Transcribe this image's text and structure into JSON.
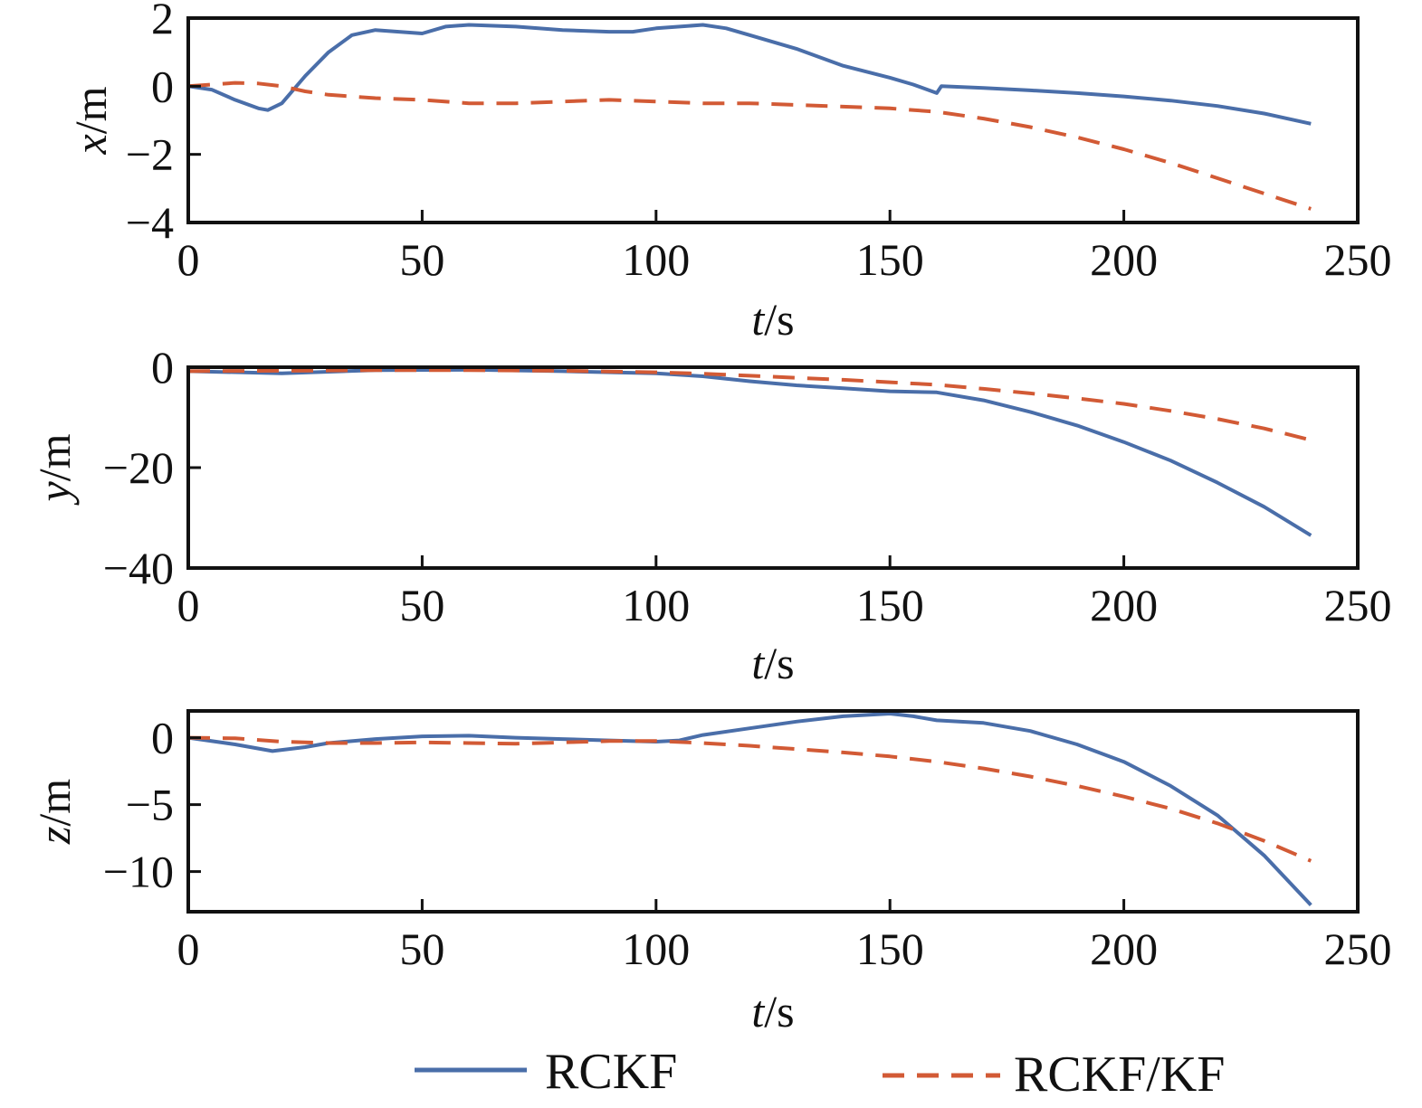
{
  "chart_data": [
    {
      "type": "line",
      "xlabel_var": "t",
      "xlabel_unit": "/s",
      "ylabel_var": "x",
      "ylabel_unit": "/m",
      "xlim": [
        0,
        250
      ],
      "ylim": [
        -4,
        2
      ],
      "xticks": [
        0,
        50,
        100,
        150,
        200,
        250
      ],
      "yticks": [
        2,
        0,
        -2,
        -4
      ],
      "xtick_labels": [
        "0",
        "50",
        "100",
        "150",
        "200",
        "250"
      ],
      "ytick_labels": [
        "2",
        "0",
        "−2",
        "−4"
      ],
      "series": [
        {
          "name": "RCKF",
          "x": [
            0,
            5,
            10,
            15,
            17,
            20,
            25,
            30,
            35,
            40,
            45,
            50,
            55,
            60,
            70,
            80,
            90,
            95,
            100,
            110,
            115,
            120,
            130,
            140,
            150,
            155,
            160,
            161,
            170,
            180,
            190,
            200,
            210,
            220,
            230,
            240
          ],
          "y": [
            0,
            -0.1,
            -0.4,
            -0.65,
            -0.7,
            -0.5,
            0.3,
            1.0,
            1.5,
            1.65,
            1.6,
            1.55,
            1.75,
            1.8,
            1.75,
            1.65,
            1.6,
            1.6,
            1.7,
            1.8,
            1.7,
            1.5,
            1.1,
            0.6,
            0.25,
            0.05,
            -0.2,
            0.0,
            -0.05,
            -0.12,
            -0.2,
            -0.3,
            -0.42,
            -0.58,
            -0.8,
            -1.1
          ]
        },
        {
          "name": "RCKF/KF",
          "x": [
            0,
            5,
            10,
            15,
            20,
            25,
            30,
            40,
            50,
            60,
            70,
            80,
            90,
            100,
            110,
            120,
            130,
            140,
            150,
            160,
            170,
            180,
            190,
            200,
            210,
            220,
            230,
            240
          ],
          "y": [
            0,
            0.05,
            0.1,
            0.08,
            0.0,
            -0.15,
            -0.25,
            -0.35,
            -0.4,
            -0.5,
            -0.5,
            -0.45,
            -0.4,
            -0.45,
            -0.5,
            -0.5,
            -0.55,
            -0.6,
            -0.65,
            -0.75,
            -0.95,
            -1.2,
            -1.5,
            -1.85,
            -2.25,
            -2.7,
            -3.15,
            -3.6
          ]
        }
      ]
    },
    {
      "type": "line",
      "xlabel_var": "t",
      "xlabel_unit": "/s",
      "ylabel_var": "y",
      "ylabel_unit": "/m",
      "xlim": [
        0,
        250
      ],
      "ylim": [
        -40,
        0
      ],
      "xticks": [
        0,
        50,
        100,
        150,
        200,
        250
      ],
      "yticks": [
        0,
        -20,
        -40
      ],
      "xtick_labels": [
        "0",
        "50",
        "100",
        "150",
        "200",
        "250"
      ],
      "ytick_labels": [
        "0",
        "−20",
        "−40"
      ],
      "series": [
        {
          "name": "RCKF",
          "x": [
            0,
            20,
            40,
            60,
            80,
            100,
            110,
            120,
            130,
            140,
            150,
            160,
            170,
            180,
            190,
            200,
            210,
            220,
            230,
            240
          ],
          "y": [
            -0.8,
            -1.2,
            -0.6,
            -0.5,
            -0.8,
            -1.2,
            -1.8,
            -2.8,
            -3.6,
            -4.2,
            -4.8,
            -5.0,
            -6.6,
            -8.9,
            -11.6,
            -14.9,
            -18.6,
            -23.0,
            -27.8,
            -33.5
          ]
        },
        {
          "name": "RCKF/KF",
          "x": [
            0,
            20,
            40,
            60,
            80,
            100,
            110,
            120,
            130,
            140,
            150,
            160,
            170,
            180,
            190,
            200,
            210,
            220,
            230,
            240
          ],
          "y": [
            -0.8,
            -0.7,
            -0.6,
            -0.6,
            -0.7,
            -1.0,
            -1.3,
            -1.7,
            -2.1,
            -2.5,
            -3.0,
            -3.5,
            -4.3,
            -5.2,
            -6.2,
            -7.3,
            -8.7,
            -10.3,
            -12.2,
            -14.5
          ]
        }
      ]
    },
    {
      "type": "line",
      "xlabel_var": "t",
      "xlabel_unit": "/s",
      "ylabel_var": "z",
      "ylabel_unit": "/m",
      "xlim": [
        0,
        250
      ],
      "ylim": [
        -13,
        2
      ],
      "xticks": [
        0,
        50,
        100,
        150,
        200,
        250
      ],
      "yticks": [
        0,
        -5,
        -10
      ],
      "xtick_labels": [
        "0",
        "50",
        "100",
        "150",
        "200",
        "250"
      ],
      "ytick_labels": [
        "0",
        "−5",
        "−10"
      ],
      "series": [
        {
          "name": "RCKF",
          "x": [
            0,
            10,
            18,
            25,
            30,
            40,
            50,
            60,
            70,
            80,
            90,
            100,
            105,
            110,
            120,
            130,
            140,
            150,
            155,
            160,
            170,
            180,
            190,
            200,
            210,
            220,
            230,
            240
          ],
          "y": [
            0,
            -0.5,
            -1.0,
            -0.7,
            -0.4,
            -0.1,
            0.1,
            0.15,
            0.0,
            -0.1,
            -0.2,
            -0.3,
            -0.2,
            0.2,
            0.7,
            1.2,
            1.6,
            1.8,
            1.6,
            1.3,
            1.1,
            0.5,
            -0.5,
            -1.8,
            -3.6,
            -5.8,
            -8.8,
            -12.5
          ]
        },
        {
          "name": "RCKF/KF",
          "x": [
            0,
            10,
            20,
            30,
            40,
            50,
            60,
            70,
            80,
            90,
            100,
            110,
            120,
            130,
            140,
            150,
            160,
            170,
            180,
            190,
            200,
            210,
            220,
            230,
            240
          ],
          "y": [
            0,
            -0.05,
            -0.3,
            -0.4,
            -0.4,
            -0.35,
            -0.4,
            -0.45,
            -0.35,
            -0.25,
            -0.25,
            -0.4,
            -0.6,
            -0.85,
            -1.1,
            -1.4,
            -1.8,
            -2.3,
            -2.9,
            -3.6,
            -4.4,
            -5.3,
            -6.4,
            -7.7,
            -9.2
          ]
        }
      ]
    }
  ],
  "legend": {
    "items": [
      {
        "label": "RCKF",
        "color": "#4a6ea9",
        "style": "solid"
      },
      {
        "label": "RCKF/KF",
        "color": "#d25a35",
        "style": "dashed"
      }
    ]
  },
  "colors": {
    "rckf": "#4a6ea9",
    "rckf_kf": "#d25a35",
    "axes": "#111111"
  }
}
